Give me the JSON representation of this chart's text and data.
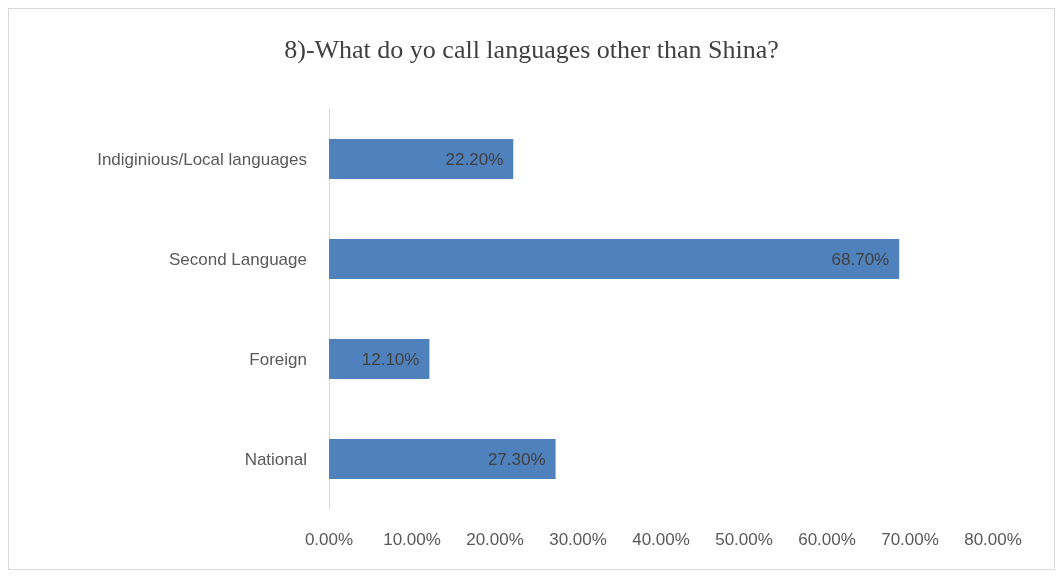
{
  "chart_data": {
    "type": "bar",
    "orientation": "horizontal",
    "title": "8)-What do yo call languages other than Shina?",
    "categories": [
      "Indiginious/Local languages",
      "Second Language",
      "Foreign",
      "National"
    ],
    "values": [
      22.2,
      68.7,
      12.1,
      27.3
    ],
    "value_labels": [
      "22.20%",
      "68.70%",
      "12.10%",
      "27.30%"
    ],
    "color": "#4f81bd",
    "xlim": [
      0,
      80
    ],
    "xticks": [
      {
        "value": 0,
        "label": "0.00%"
      },
      {
        "value": 10,
        "label": "10.00%"
      },
      {
        "value": 20,
        "label": "20.00%"
      },
      {
        "value": 30,
        "label": "30.00%"
      },
      {
        "value": 40,
        "label": "40.00%"
      },
      {
        "value": 50,
        "label": "50.00%"
      },
      {
        "value": 60,
        "label": "60.00%"
      },
      {
        "value": 70,
        "label": "70.00%"
      },
      {
        "value": 80,
        "label": "80.00%"
      }
    ],
    "grid": false
  }
}
